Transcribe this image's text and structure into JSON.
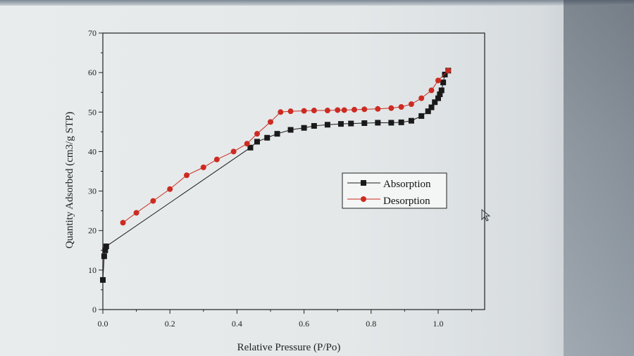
{
  "chart_data": {
    "type": "line",
    "xlabel": "Relative Pressure (P/Po)",
    "ylabel": "Quantity Adsorbed (cm3/g STP)",
    "xlim": [
      0,
      1.1
    ],
    "ylim": [
      0,
      70
    ],
    "x_ticks": [
      "0.0",
      "0.2",
      "0.4",
      "0.6",
      "0.8",
      "1.0"
    ],
    "y_ticks": [
      "0",
      "10",
      "20",
      "30",
      "40",
      "50",
      "60",
      "70"
    ],
    "grid": false,
    "legend_position": "center-right",
    "series": [
      {
        "name": "Absorption",
        "color": "#1a1a1a",
        "marker": "square",
        "x": [
          0.0,
          0.004,
          0.007,
          0.01,
          0.44,
          0.46,
          0.49,
          0.52,
          0.56,
          0.6,
          0.63,
          0.67,
          0.71,
          0.74,
          0.78,
          0.82,
          0.86,
          0.89,
          0.92,
          0.95,
          0.97,
          0.98,
          0.99,
          1.0,
          1.005,
          1.01,
          1.015,
          1.02,
          1.03
        ],
        "y": [
          7.5,
          13.5,
          15.0,
          16.0,
          41.0,
          42.5,
          43.5,
          44.5,
          45.5,
          46.0,
          46.5,
          46.8,
          47.0,
          47.1,
          47.2,
          47.3,
          47.3,
          47.4,
          47.8,
          49.0,
          50.2,
          51.2,
          52.5,
          53.5,
          54.5,
          55.5,
          57.5,
          59.5,
          60.5
        ]
      },
      {
        "name": "Desorption",
        "color": "#cc2b22",
        "marker": "circle",
        "x": [
          1.03,
          1.0,
          0.98,
          0.95,
          0.92,
          0.89,
          0.86,
          0.82,
          0.78,
          0.75,
          0.72,
          0.7,
          0.67,
          0.63,
          0.6,
          0.56,
          0.53,
          0.5,
          0.46,
          0.43,
          0.39,
          0.34,
          0.3,
          0.25,
          0.2,
          0.15,
          0.1,
          0.06
        ],
        "y": [
          60.5,
          58.0,
          55.5,
          53.5,
          52.0,
          51.3,
          51.0,
          50.8,
          50.7,
          50.6,
          50.5,
          50.5,
          50.4,
          50.4,
          50.3,
          50.2,
          50.0,
          47.5,
          44.5,
          42.0,
          40.0,
          38.0,
          36.0,
          34.0,
          30.5,
          27.5,
          24.5,
          22.0
        ]
      }
    ]
  }
}
